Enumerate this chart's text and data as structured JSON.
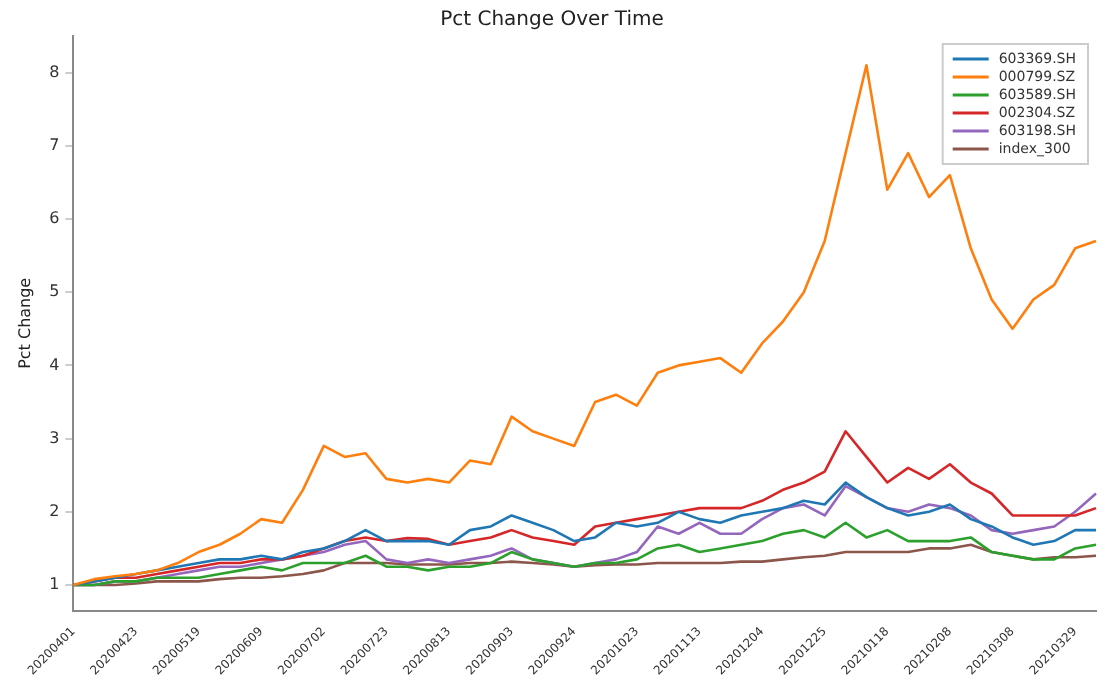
{
  "chart_data": {
    "type": "line",
    "title": "Pct Change Over Time",
    "ylabel": "Pct Change",
    "categories": [
      "20200401",
      null,
      null,
      "20200423",
      null,
      null,
      "20200519",
      null,
      null,
      "20200609",
      null,
      null,
      "20200702",
      null,
      null,
      "20200723",
      null,
      null,
      "20200813",
      null,
      null,
      "20200903",
      null,
      null,
      "20200924",
      null,
      null,
      "20201023",
      null,
      null,
      "20201113",
      null,
      null,
      "20201204",
      null,
      null,
      "20201225",
      null,
      null,
      "20210118",
      null,
      null,
      "20210208",
      null,
      null,
      "20210308",
      null,
      null,
      "20210329",
      null
    ],
    "series": [
      {
        "name": "603369.SH",
        "color": "#1f77b4",
        "values": [
          1.0,
          1.05,
          1.1,
          1.15,
          1.2,
          1.25,
          1.3,
          1.35,
          1.35,
          1.4,
          1.35,
          1.45,
          1.5,
          1.6,
          1.75,
          1.6,
          1.6,
          1.6,
          1.55,
          1.75,
          1.8,
          1.95,
          1.85,
          1.75,
          1.6,
          1.65,
          1.85,
          1.8,
          1.85,
          2.0,
          1.9,
          1.85,
          1.95,
          2.0,
          2.05,
          2.15,
          2.1,
          2.4,
          2.2,
          2.05,
          1.95,
          2.0,
          2.1,
          1.9,
          1.8,
          1.65,
          1.55,
          1.6,
          1.75,
          1.75
        ]
      },
      {
        "name": "000799.SZ",
        "color": "#ff7f0e",
        "values": [
          1.0,
          1.08,
          1.12,
          1.15,
          1.2,
          1.3,
          1.45,
          1.55,
          1.7,
          1.9,
          1.85,
          2.3,
          2.9,
          2.75,
          2.8,
          2.45,
          2.4,
          2.45,
          2.4,
          2.7,
          2.65,
          3.3,
          3.1,
          3.0,
          2.9,
          3.5,
          3.6,
          3.45,
          3.9,
          4.0,
          4.05,
          4.1,
          3.9,
          4.3,
          4.6,
          5.0,
          5.7,
          6.9,
          8.1,
          6.4,
          6.9,
          6.3,
          6.6,
          5.6,
          4.9,
          4.5,
          4.9,
          5.1,
          5.6,
          5.7
        ]
      },
      {
        "name": "603589.SH",
        "color": "#2ca02c",
        "values": [
          1.0,
          1.0,
          1.05,
          1.05,
          1.1,
          1.1,
          1.1,
          1.15,
          1.2,
          1.25,
          1.2,
          1.3,
          1.3,
          1.3,
          1.4,
          1.25,
          1.25,
          1.2,
          1.25,
          1.25,
          1.3,
          1.45,
          1.35,
          1.3,
          1.25,
          1.3,
          1.3,
          1.35,
          1.5,
          1.55,
          1.45,
          1.5,
          1.55,
          1.6,
          1.7,
          1.75,
          1.65,
          1.85,
          1.65,
          1.75,
          1.6,
          1.6,
          1.6,
          1.65,
          1.45,
          1.4,
          1.35,
          1.35,
          1.5,
          1.55
        ]
      },
      {
        "name": "002304.SZ",
        "color": "#d62728",
        "values": [
          1.0,
          1.05,
          1.1,
          1.1,
          1.15,
          1.2,
          1.25,
          1.3,
          1.3,
          1.35,
          1.35,
          1.4,
          1.5,
          1.6,
          1.65,
          1.6,
          1.64,
          1.63,
          1.55,
          1.6,
          1.65,
          1.75,
          1.65,
          1.6,
          1.55,
          1.8,
          1.85,
          1.9,
          1.95,
          2.0,
          2.05,
          2.05,
          2.05,
          2.15,
          2.3,
          2.4,
          2.55,
          3.1,
          2.75,
          2.4,
          2.6,
          2.45,
          2.65,
          2.4,
          2.25,
          1.95,
          1.95,
          1.95,
          1.95,
          2.05
        ]
      },
      {
        "name": "603198.SH",
        "color": "#9467bd",
        "values": [
          1.0,
          1.0,
          1.05,
          1.05,
          1.1,
          1.15,
          1.2,
          1.25,
          1.25,
          1.3,
          1.35,
          1.4,
          1.45,
          1.55,
          1.6,
          1.35,
          1.3,
          1.35,
          1.3,
          1.35,
          1.4,
          1.5,
          1.35,
          1.3,
          1.25,
          1.3,
          1.35,
          1.45,
          1.8,
          1.7,
          1.85,
          1.7,
          1.7,
          1.9,
          2.05,
          2.1,
          1.95,
          2.35,
          2.2,
          2.05,
          2.0,
          2.1,
          2.05,
          1.95,
          1.75,
          1.7,
          1.75,
          1.8,
          2.0,
          2.25
        ]
      },
      {
        "name": "index_300",
        "color": "#8c564b",
        "values": [
          1.0,
          1.0,
          1.0,
          1.02,
          1.05,
          1.05,
          1.05,
          1.08,
          1.1,
          1.1,
          1.12,
          1.15,
          1.2,
          1.3,
          1.3,
          1.3,
          1.28,
          1.28,
          1.28,
          1.3,
          1.3,
          1.32,
          1.3,
          1.28,
          1.25,
          1.27,
          1.28,
          1.28,
          1.3,
          1.3,
          1.3,
          1.3,
          1.32,
          1.32,
          1.35,
          1.38,
          1.4,
          1.45,
          1.45,
          1.45,
          1.45,
          1.5,
          1.5,
          1.55,
          1.45,
          1.4,
          1.35,
          1.38,
          1.38,
          1.4
        ]
      }
    ],
    "ylim": [
      0.65,
      8.5
    ],
    "yticks": [
      1,
      2,
      3,
      4,
      5,
      6,
      7,
      8
    ],
    "grid": false,
    "legend": "top right",
    "marker": "none",
    "line_style": "solid"
  }
}
